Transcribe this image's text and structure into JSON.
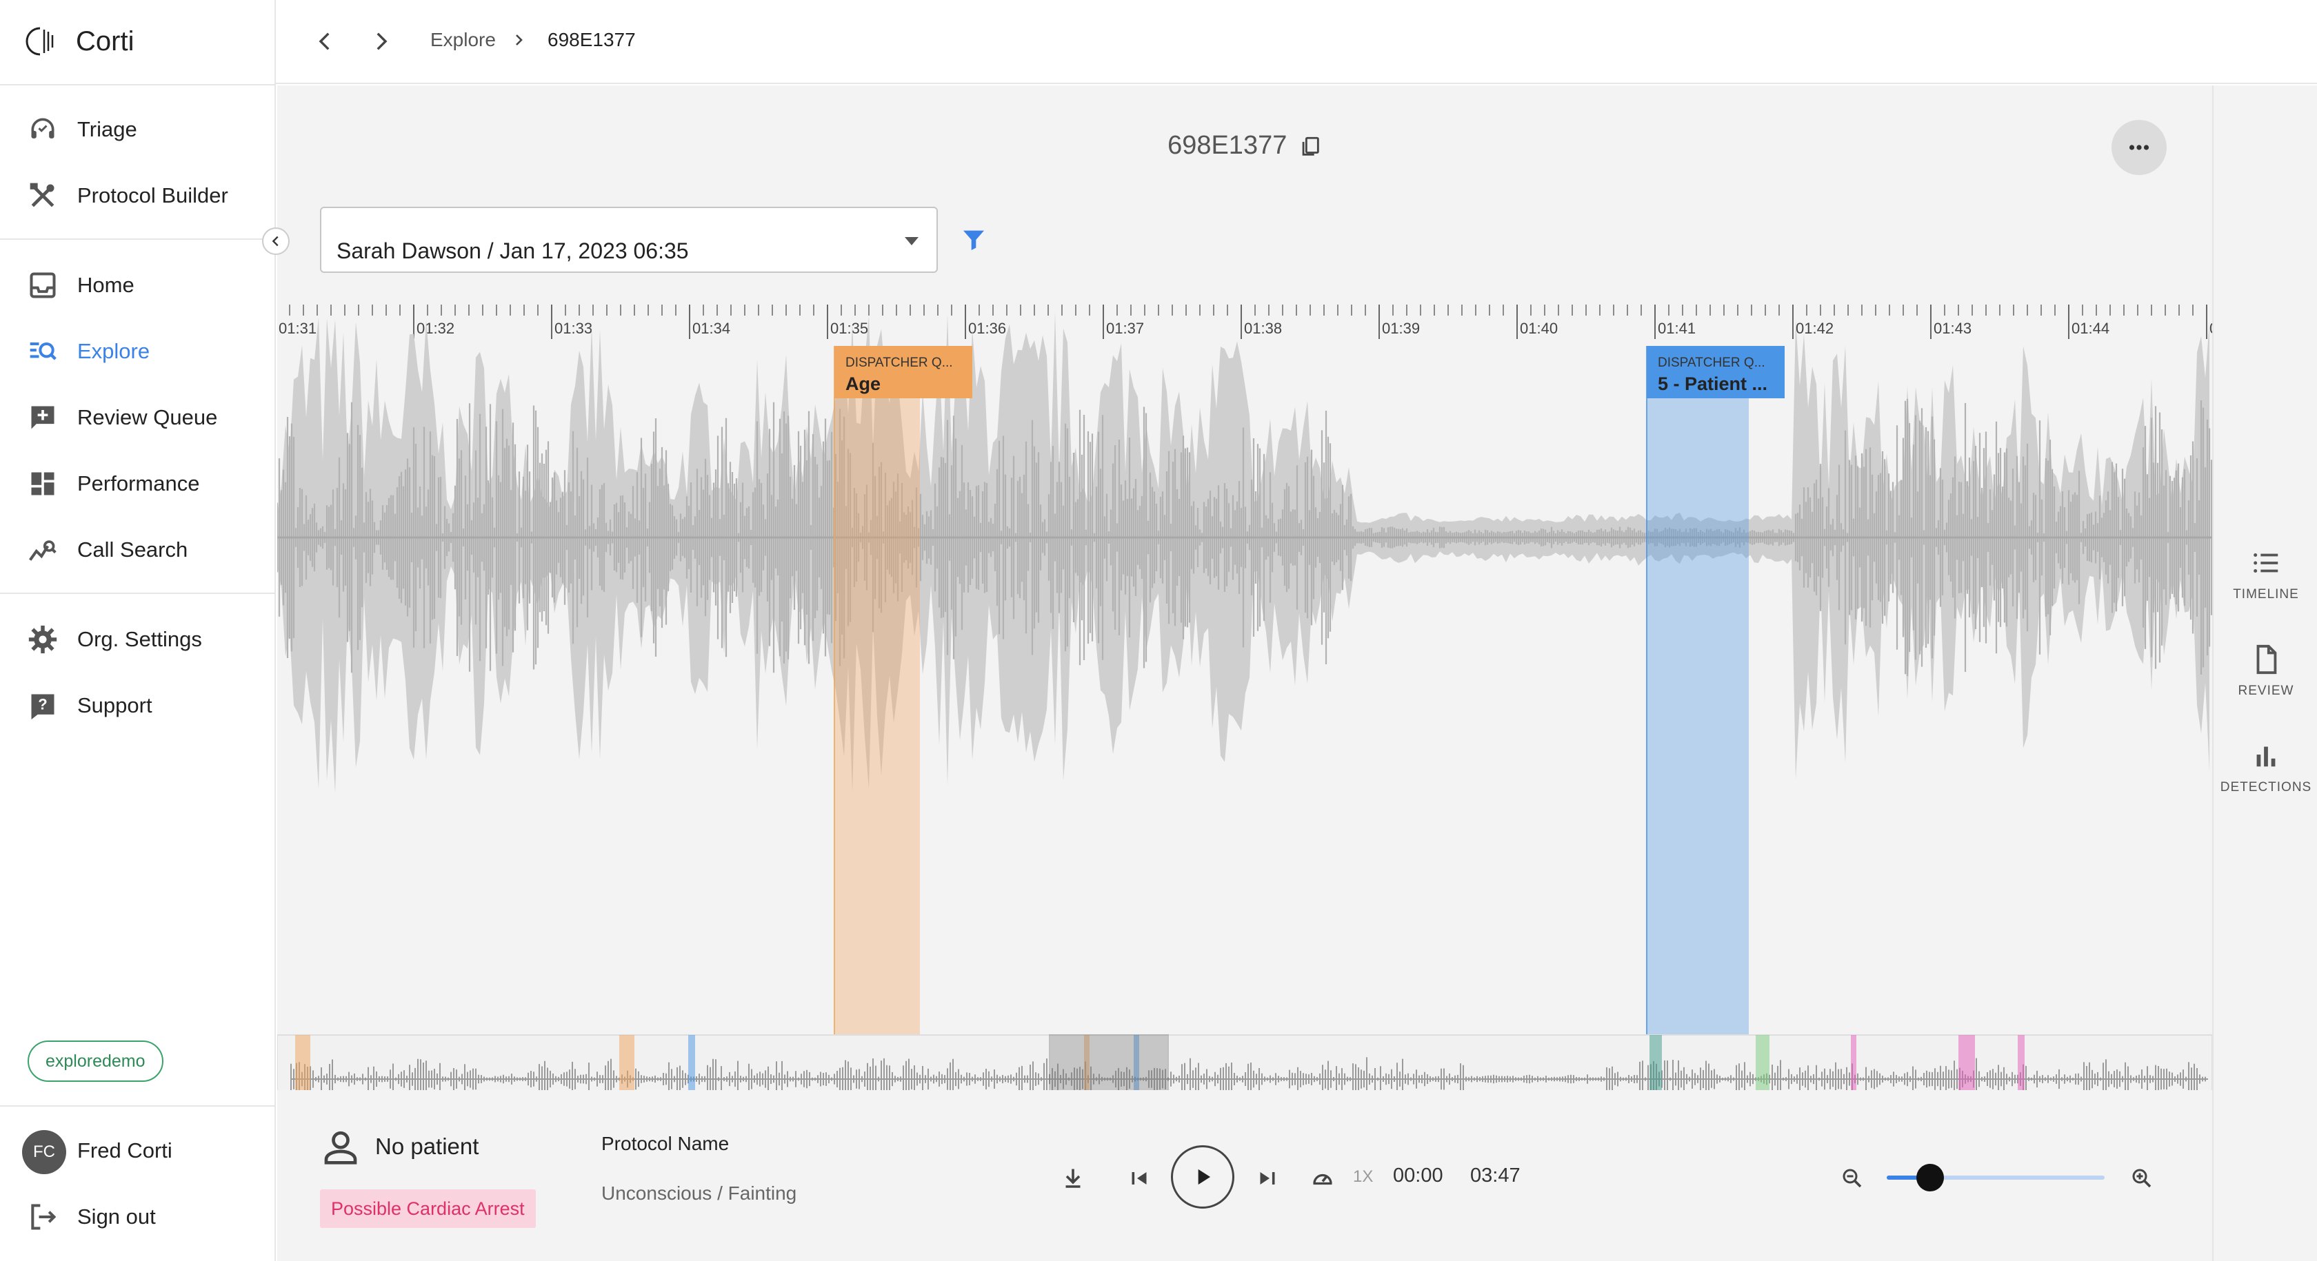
{
  "app": {
    "name": "Corti"
  },
  "sidebar": {
    "items": [
      {
        "label": "Triage",
        "icon": "headset-icon"
      },
      {
        "label": "Protocol Builder",
        "icon": "tools-icon"
      },
      {
        "label": "Home",
        "icon": "inbox-icon"
      },
      {
        "label": "Explore",
        "icon": "explore-icon",
        "active": true
      },
      {
        "label": "Review Queue",
        "icon": "review-queue-icon"
      },
      {
        "label": "Performance",
        "icon": "dashboard-icon"
      },
      {
        "label": "Call Search",
        "icon": "call-search-icon"
      },
      {
        "label": "Org. Settings",
        "icon": "gear-icon"
      },
      {
        "label": "Support",
        "icon": "help-icon"
      }
    ],
    "org_badge": "exploredemo",
    "user": {
      "initials": "FC",
      "name": "Fred Corti"
    },
    "sign_out": "Sign out"
  },
  "topbar": {
    "breadcrumb": [
      "Explore",
      "698E1377"
    ]
  },
  "call": {
    "id": "698E1377",
    "selected_call": "Sarah Dawson / Jan 17, 2023 06:35"
  },
  "timeline": {
    "ticks": [
      "01:31",
      "01:32",
      "01:33",
      "01:34",
      "01:35",
      "01:36",
      "01:37",
      "01:38",
      "01:39",
      "01:40",
      "01:41",
      "01:42",
      "01:43",
      "01:44",
      "0"
    ],
    "markers": [
      {
        "category": "DISPATCHER Q...",
        "label": "Age",
        "color": "#f0a45c"
      },
      {
        "category": "DISPATCHER Q...",
        "label": "5 - Patient ...",
        "color": "#4a95e6"
      }
    ]
  },
  "right_panel": {
    "items": [
      {
        "label": "TIMELINE",
        "icon": "list-icon"
      },
      {
        "label": "REVIEW",
        "icon": "document-icon"
      },
      {
        "label": "DETECTIONS",
        "icon": "bar-chart-icon"
      }
    ]
  },
  "patient": {
    "label": "No patient",
    "tag": "Possible Cardiac Arrest"
  },
  "protocol": {
    "label": "Protocol Name",
    "value": "Unconscious / Fainting"
  },
  "player": {
    "speed": "1X",
    "current_time": "00:00",
    "total_time": "03:47",
    "zoom_level": 0.2
  }
}
